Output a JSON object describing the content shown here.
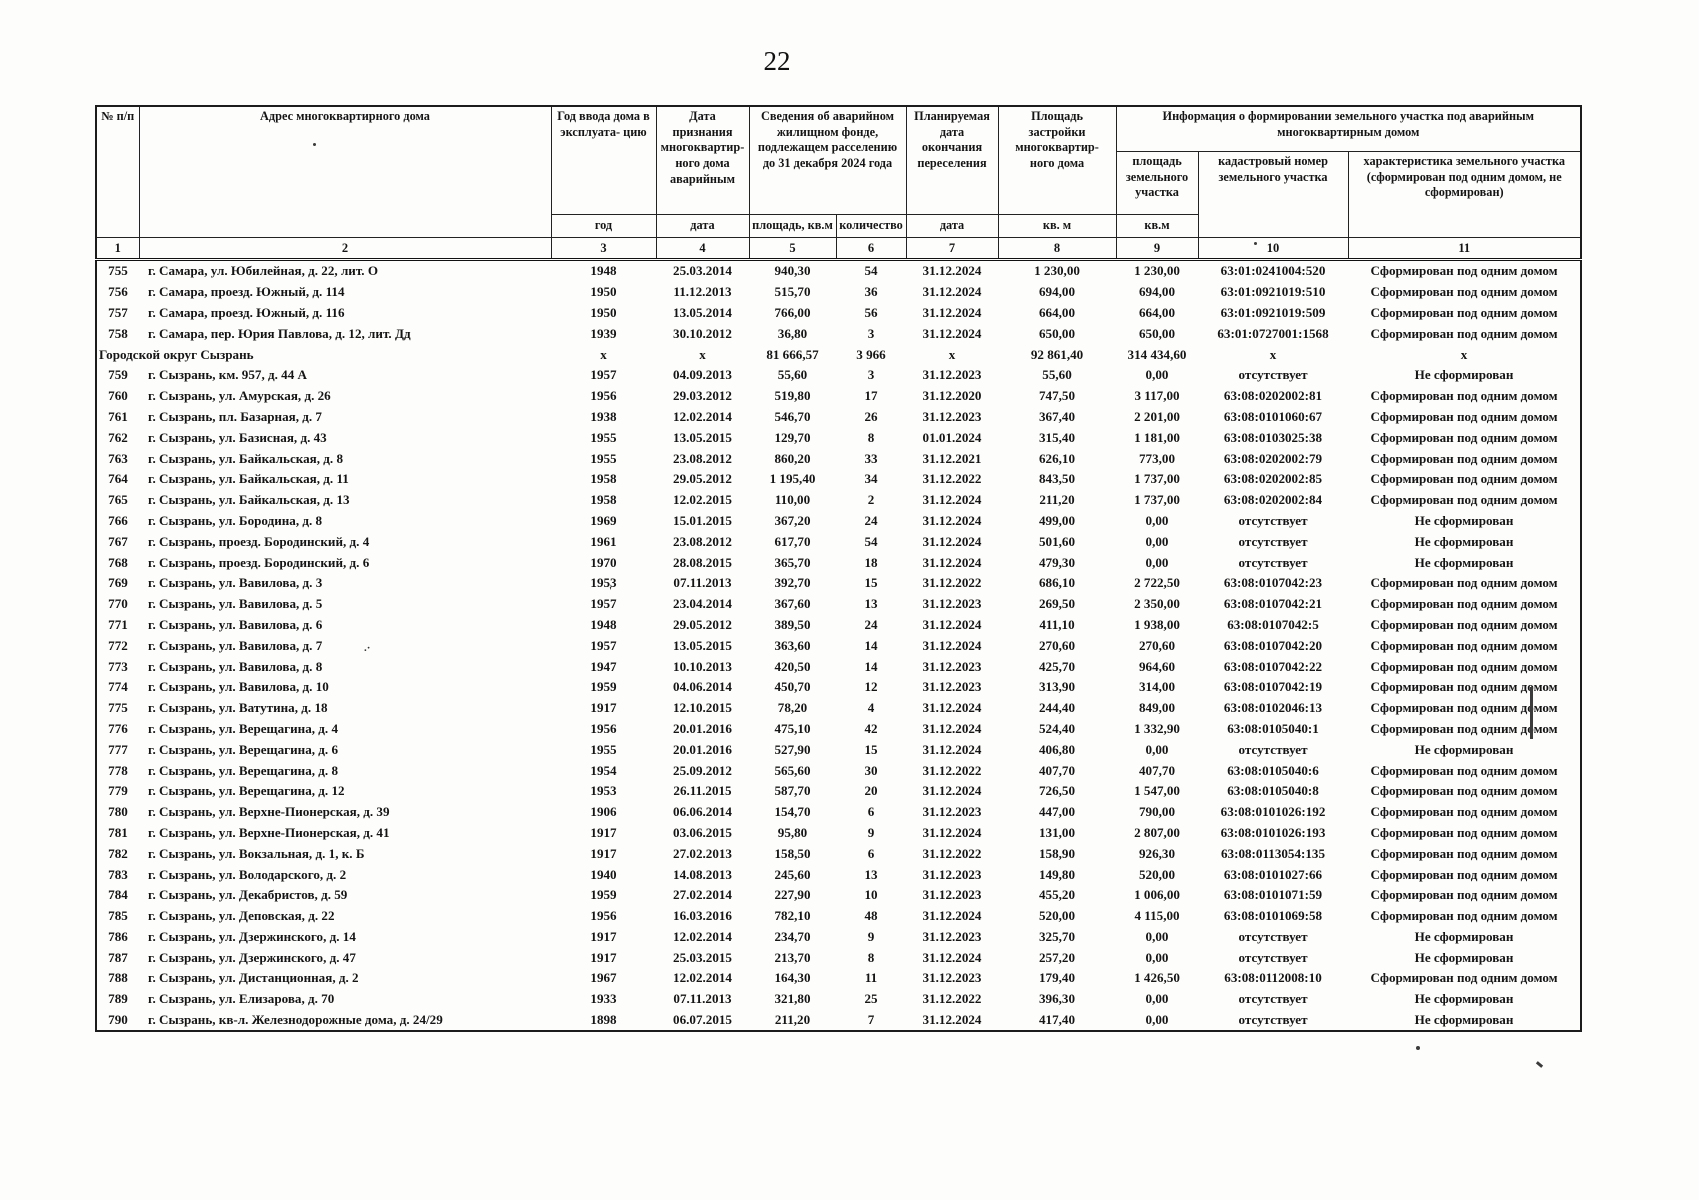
{
  "page": {
    "number": "22"
  },
  "table": {
    "header": {
      "col1": "№ п/п",
      "col2": "Адрес многоквартирного дома",
      "col3": "Год ввода дома в эксплуата- цию",
      "col4": "Дата признания многоквартир- ного дома аварийным",
      "group56": "Сведения об аварийном жилищном фонде, подлежащем расселению до 31 декабря 2024 года",
      "col7": "Планируемая дата окончания переселения",
      "col8": "Площадь застройки многоквартир- ного дома",
      "group911": "Информация о формировании земельного участка под аварийным многоквартирным домом",
      "col9": "площадь земельного участка",
      "col10": "кадастровый номер земельного участка",
      "col11": "характеристика земельного участка (сформирован под одним домом, не сформирован)",
      "units": [
        "год",
        "дата",
        "площадь, кв.м",
        "количество",
        "дата",
        "кв. м",
        "кв.м"
      ],
      "numbers": [
        "1",
        "2",
        "3",
        "4",
        "5",
        "6",
        "7",
        "8",
        "9",
        "10",
        "11"
      ]
    },
    "rows": [
      [
        "755",
        "г. Самара, ул. Юбилейная, д. 22, лит. О",
        "1948",
        "25.03.2014",
        "940,30",
        "54",
        "31.12.2024",
        "1 230,00",
        "1 230,00",
        "63:01:0241004:520",
        "Сформирован под одним домом"
      ],
      [
        "756",
        "г. Самара, проезд. Южный, д. 114",
        "1950",
        "11.12.2013",
        "515,70",
        "36",
        "31.12.2024",
        "694,00",
        "694,00",
        "63:01:0921019:510",
        "Сформирован под одним домом"
      ],
      [
        "757",
        "г. Самара, проезд. Южный, д. 116",
        "1950",
        "13.05.2014",
        "766,00",
        "56",
        "31.12.2024",
        "664,00",
        "664,00",
        "63:01:0921019:509",
        "Сформирован под одним домом"
      ],
      [
        "758",
        "г. Самара, пер. Юрия Павлова, д. 12, лит. Дд",
        "1939",
        "30.10.2012",
        "36,80",
        "3",
        "31.12.2024",
        "650,00",
        "650,00",
        "63:01:0727001:1568",
        "Сформирован под одним домом"
      ],
      [
        "",
        "Городской округ Сызрань",
        "х",
        "х",
        "81 666,57",
        "3 966",
        "х",
        "92 861,40",
        "314 434,60",
        "х",
        "х"
      ],
      [
        "759",
        "г. Сызрань, км. 957, д. 44 А",
        "1957",
        "04.09.2013",
        "55,60",
        "3",
        "31.12.2023",
        "55,60",
        "0,00",
        "отсутствует",
        "Не сформирован"
      ],
      [
        "760",
        "г. Сызрань, ул. Амурская, д. 26",
        "1956",
        "29.03.2012",
        "519,80",
        "17",
        "31.12.2020",
        "747,50",
        "3 117,00",
        "63:08:0202002:81",
        "Сформирован под одним домом"
      ],
      [
        "761",
        "г. Сызрань, пл. Базарная, д. 7",
        "1938",
        "12.02.2014",
        "546,70",
        "26",
        "31.12.2023",
        "367,40",
        "2 201,00",
        "63:08:0101060:67",
        "Сформирован под одним домом"
      ],
      [
        "762",
        "г. Сызрань, ул. Базисная, д. 43",
        "1955",
        "13.05.2015",
        "129,70",
        "8",
        "01.01.2024",
        "315,40",
        "1 181,00",
        "63:08:0103025:38",
        "Сформирован под одним домом"
      ],
      [
        "763",
        "г. Сызрань, ул. Байкальская, д. 8",
        "1955",
        "23.08.2012",
        "860,20",
        "33",
        "31.12.2021",
        "626,10",
        "773,00",
        "63:08:0202002:79",
        "Сформирован под одним домом"
      ],
      [
        "764",
        "г. Сызрань, ул. Байкальская, д. 11",
        "1958",
        "29.05.2012",
        "1 195,40",
        "34",
        "31.12.2022",
        "843,50",
        "1 737,00",
        "63:08:0202002:85",
        "Сформирован под одним домом"
      ],
      [
        "765",
        "г. Сызрань, ул. Байкальская, д. 13",
        "1958",
        "12.02.2015",
        "110,00",
        "2",
        "31.12.2024",
        "211,20",
        "1 737,00",
        "63:08:0202002:84",
        "Сформирован под одним домом"
      ],
      [
        "766",
        "г. Сызрань, ул. Бородина, д. 8",
        "1969",
        "15.01.2015",
        "367,20",
        "24",
        "31.12.2024",
        "499,00",
        "0,00",
        "отсутствует",
        "Не сформирован"
      ],
      [
        "767",
        "г. Сызрань, проезд. Бородинский, д. 4",
        "1961",
        "23.08.2012",
        "617,70",
        "54",
        "31.12.2024",
        "501,60",
        "0,00",
        "отсутствует",
        "Не сформирован"
      ],
      [
        "768",
        "г. Сызрань, проезд. Бородинский, д. 6",
        "1970",
        "28.08.2015",
        "365,70",
        "18",
        "31.12.2024",
        "479,30",
        "0,00",
        "отсутствует",
        "Не сформирован"
      ],
      [
        "769",
        "г. Сызрань, ул. Вавилова, д. 3",
        "1953",
        "07.11.2013",
        "392,70",
        "15",
        "31.12.2022",
        "686,10",
        "2 722,50",
        "63:08:0107042:23",
        "Сформирован под одним домом"
      ],
      [
        "770",
        "г. Сызрань, ул. Вавилова, д. 5",
        "1957",
        "23.04.2014",
        "367,60",
        "13",
        "31.12.2023",
        "269,50",
        "2 350,00",
        "63:08:0107042:21",
        "Сформирован под одним домом"
      ],
      [
        "771",
        "г. Сызрань, ул. Вавилова, д. 6",
        "1948",
        "29.05.2012",
        "389,50",
        "24",
        "31.12.2024",
        "411,10",
        "1 938,00",
        "63:08:0107042:5",
        "Сформирован под одним домом"
      ],
      [
        "772",
        "г. Сызрань, ул. Вавилова, д. 7",
        "1957",
        "13.05.2015",
        "363,60",
        "14",
        "31.12.2024",
        "270,60",
        "270,60",
        "63:08:0107042:20",
        "Сформирован под одним домом"
      ],
      [
        "773",
        "г. Сызрань, ул. Вавилова, д. 8",
        "1947",
        "10.10.2013",
        "420,50",
        "14",
        "31.12.2023",
        "425,70",
        "964,60",
        "63:08:0107042:22",
        "Сформирован под одним домом"
      ],
      [
        "774",
        "г. Сызрань, ул. Вавилова, д. 10",
        "1959",
        "04.06.2014",
        "450,70",
        "12",
        "31.12.2023",
        "313,90",
        "314,00",
        "63:08:0107042:19",
        "Сформирован под одним домом"
      ],
      [
        "775",
        "г. Сызрань, ул. Ватутина, д. 18",
        "1917",
        "12.10.2015",
        "78,20",
        "4",
        "31.12.2024",
        "244,40",
        "849,00",
        "63:08:0102046:13",
        "Сформирован под одним домом"
      ],
      [
        "776",
        "г. Сызрань, ул. Верещагина, д. 4",
        "1956",
        "20.01.2016",
        "475,10",
        "42",
        "31.12.2024",
        "524,40",
        "1 332,90",
        "63:08:0105040:1",
        "Сформирован под одним домом"
      ],
      [
        "777",
        "г. Сызрань, ул. Верещагина, д. 6",
        "1955",
        "20.01.2016",
        "527,90",
        "15",
        "31.12.2024",
        "406,80",
        "0,00",
        "отсутствует",
        "Не сформирован"
      ],
      [
        "778",
        "г. Сызрань, ул. Верещагина, д. 8",
        "1954",
        "25.09.2012",
        "565,60",
        "30",
        "31.12.2022",
        "407,70",
        "407,70",
        "63:08:0105040:6",
        "Сформирован под одним домом"
      ],
      [
        "779",
        "г. Сызрань, ул. Верещагина, д. 12",
        "1953",
        "26.11.2015",
        "587,70",
        "20",
        "31.12.2024",
        "726,50",
        "1 547,00",
        "63:08:0105040:8",
        "Сформирован под одним домом"
      ],
      [
        "780",
        "г. Сызрань, ул. Верхне-Пионерская, д. 39",
        "1906",
        "06.06.2014",
        "154,70",
        "6",
        "31.12.2023",
        "447,00",
        "790,00",
        "63:08:0101026:192",
        "Сформирован под одним домом"
      ],
      [
        "781",
        "г. Сызрань, ул. Верхне-Пионерская, д. 41",
        "1917",
        "03.06.2015",
        "95,80",
        "9",
        "31.12.2024",
        "131,00",
        "2 807,00",
        "63:08:0101026:193",
        "Сформирован под одним домом"
      ],
      [
        "782",
        "г. Сызрань, ул. Вокзальная, д. 1, к. Б",
        "1917",
        "27.02.2013",
        "158,50",
        "6",
        "31.12.2022",
        "158,90",
        "926,30",
        "63:08:0113054:135",
        "Сформирован под одним домом"
      ],
      [
        "783",
        "г. Сызрань, ул. Володарского, д. 2",
        "1940",
        "14.08.2013",
        "245,60",
        "13",
        "31.12.2023",
        "149,80",
        "520,00",
        "63:08:0101027:66",
        "Сформирован под одним домом"
      ],
      [
        "784",
        "г. Сызрань, ул. Декабристов, д. 59",
        "1959",
        "27.02.2014",
        "227,90",
        "10",
        "31.12.2023",
        "455,20",
        "1 006,00",
        "63:08:0101071:59",
        "Сформирован под одним домом"
      ],
      [
        "785",
        "г. Сызрань, ул. Деповская, д. 22",
        "1956",
        "16.03.2016",
        "782,10",
        "48",
        "31.12.2024",
        "520,00",
        "4 115,00",
        "63:08:0101069:58",
        "Сформирован под одним домом"
      ],
      [
        "786",
        "г. Сызрань, ул. Дзержинского, д. 14",
        "1917",
        "12.02.2014",
        "234,70",
        "9",
        "31.12.2023",
        "325,70",
        "0,00",
        "отсутствует",
        "Не сформирован"
      ],
      [
        "787",
        "г. Сызрань, ул. Дзержинского, д. 47",
        "1917",
        "25.03.2015",
        "213,70",
        "8",
        "31.12.2024",
        "257,20",
        "0,00",
        "отсутствует",
        "Не сформирован"
      ],
      [
        "788",
        "г. Сызрань, ул. Дистанционная, д. 2",
        "1967",
        "12.02.2014",
        "164,30",
        "11",
        "31.12.2023",
        "179,40",
        "1 426,50",
        "63:08:0112008:10",
        "Сформирован под одним домом"
      ],
      [
        "789",
        "г. Сызрань, ул. Елизарова, д. 70",
        "1933",
        "07.11.2013",
        "321,80",
        "25",
        "31.12.2022",
        "396,30",
        "0,00",
        "отсутствует",
        "Не сформирован"
      ],
      [
        "790",
        "г. Сызрань, кв-л. Железнодорожные дома, д. 24/29",
        "1898",
        "06.07.2015",
        "211,20",
        "7",
        "31.12.2024",
        "417,40",
        "0,00",
        "отсутствует",
        "Не сформирован"
      ]
    ]
  }
}
